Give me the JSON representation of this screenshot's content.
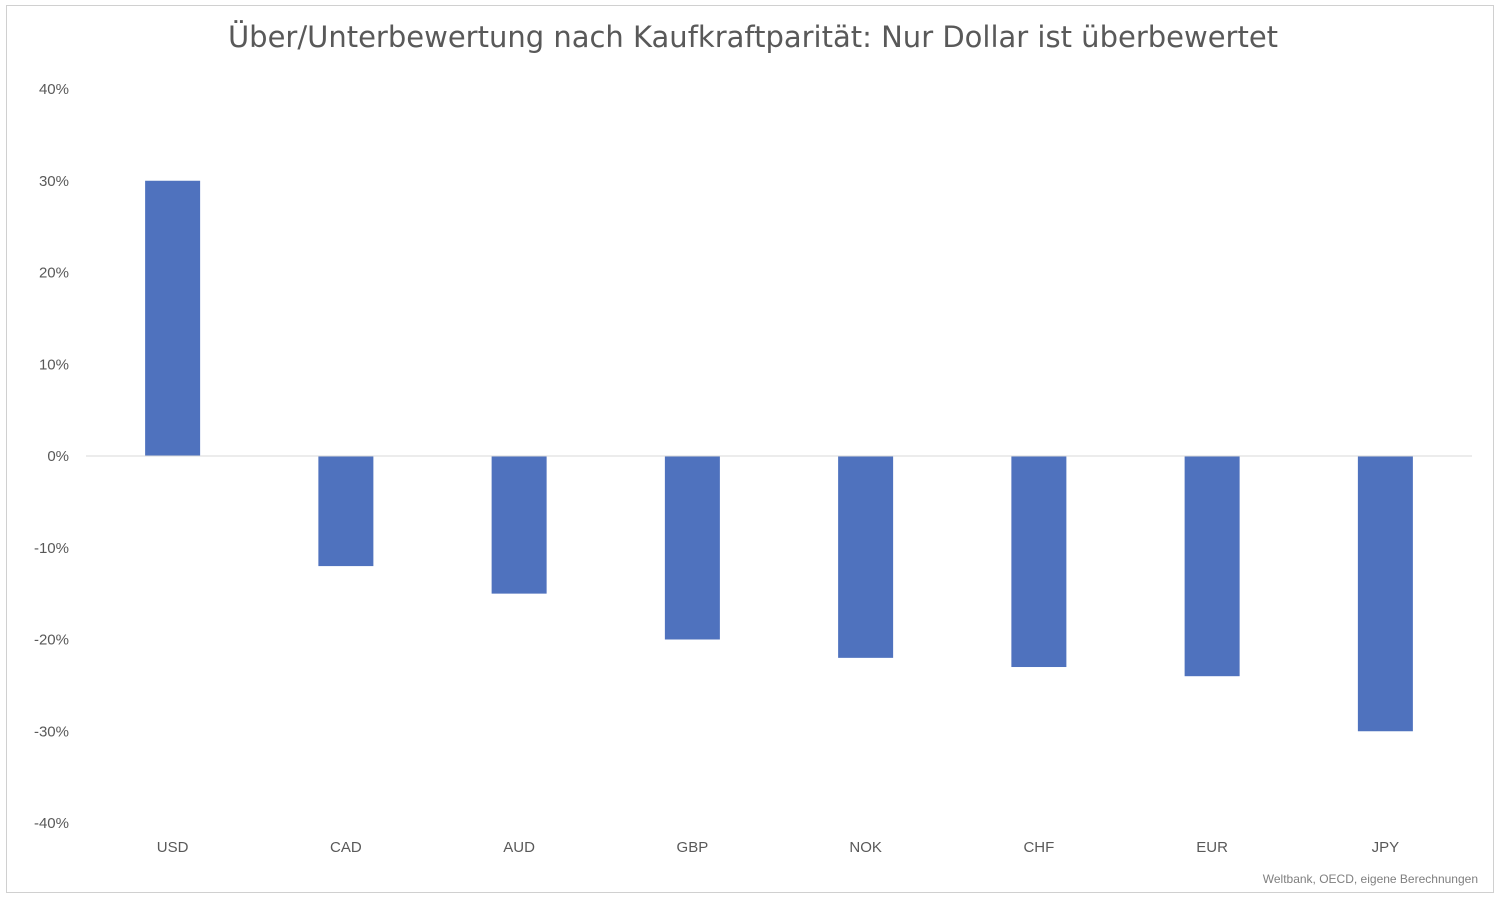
{
  "chart_data": {
    "type": "bar",
    "title": "Über/Unterbewertung nach Kaufkraftparität: Nur Dollar ist überbewertet",
    "categories": [
      "USD",
      "CAD",
      "AUD",
      "GBP",
      "NOK",
      "CHF",
      "EUR",
      "JPY"
    ],
    "series": [
      {
        "values": [
          30,
          -12,
          -15,
          -20,
          -22,
          -23,
          -24,
          -30
        ],
        "color": "#4f72be"
      }
    ],
    "ylim": [
      -40,
      40
    ],
    "yticks": [
      40,
      30,
      20,
      10,
      0,
      -10,
      -20,
      -30,
      -40
    ],
    "ytick_labels": [
      "40%",
      "30%",
      "20%",
      "10%",
      "0%",
      "-10%",
      "-20%",
      "-30%",
      "-40%"
    ],
    "ylabel": "",
    "xlabel": "",
    "grid": false,
    "source": "Weltbank, OECD, eigene Berechnungen"
  }
}
